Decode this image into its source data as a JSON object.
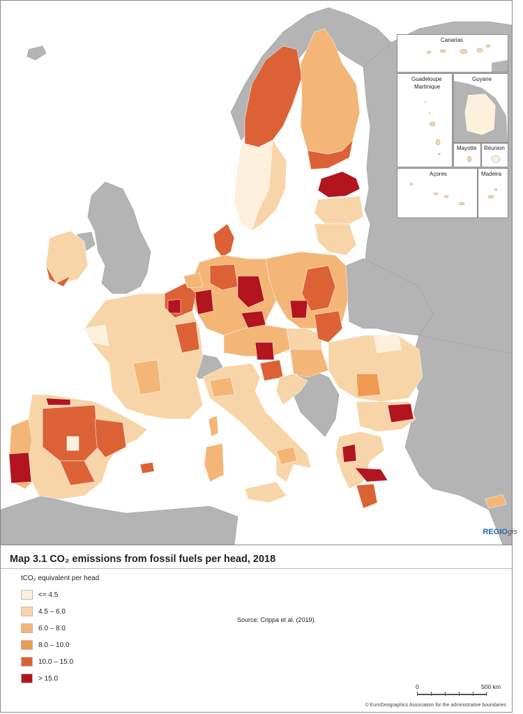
{
  "map": {
    "title": "Map 3.1 CO₂ emissions from fossil fuels per head, 2018",
    "legend_title": "tCO₂ equivalent per head",
    "legend": [
      {
        "label": "<= 4.5",
        "color": "#fdf0dc"
      },
      {
        "label": "4.5 – 6.0",
        "color": "#f8d5a8"
      },
      {
        "label": "6.0 – 8.0",
        "color": "#f4b677"
      },
      {
        "label": "8.0 – 10.0",
        "color": "#ef9a52"
      },
      {
        "label": "10.0 – 15.0",
        "color": "#dc6236"
      },
      {
        "label": "> 15.0",
        "color": "#b3151e"
      }
    ],
    "source": "Source: Crippa et al. (2019).",
    "brand_main": "REGIO",
    "brand_suffix": "gis",
    "scale": {
      "start": "0",
      "end": "500 km"
    },
    "copyright": "© EuroGeographics Association for the administrative boundaries",
    "insets": {
      "canarias": "Canarias",
      "guadeloupe": "Guadeloupe",
      "martinique": "Martinique",
      "guyane": "Guyane",
      "mayotte": "Mayotte",
      "reunion": "Réunion",
      "acores": "Açores",
      "madeira": "Madeira"
    },
    "colors": {
      "non_eu_land": "#b4b4b4",
      "sea": "#ffffff",
      "border": "#8a8a8a",
      "brand": "#1a6fae"
    }
  }
}
